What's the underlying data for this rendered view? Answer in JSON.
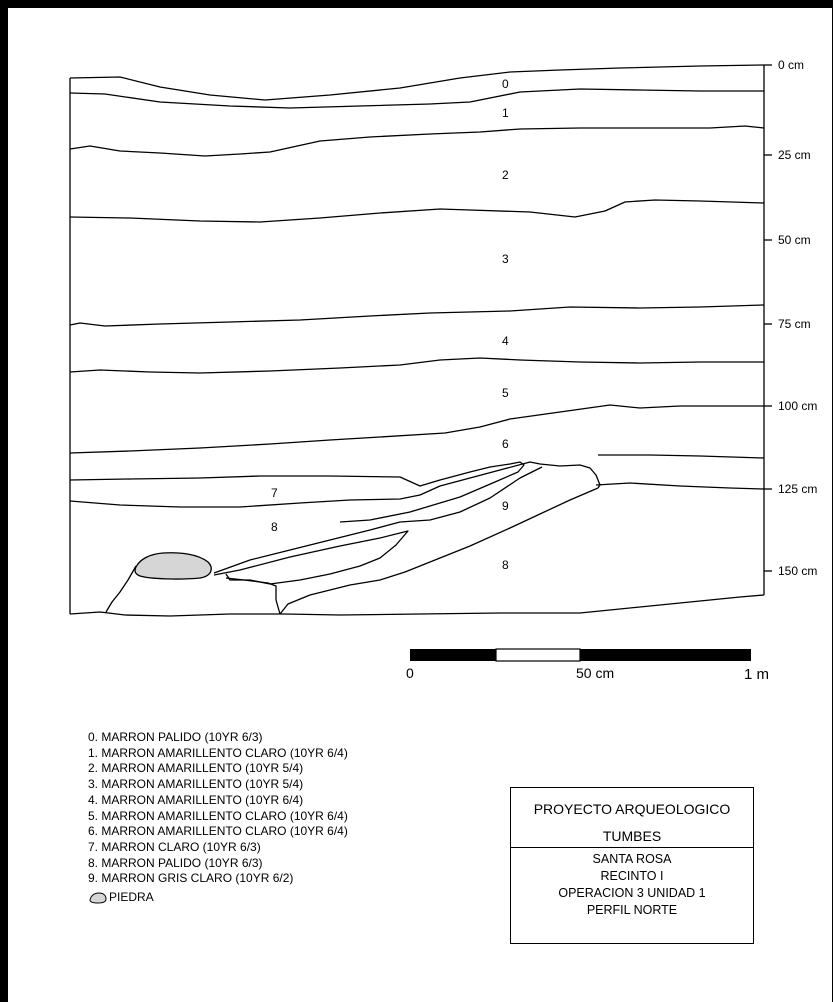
{
  "depth_scale": {
    "ticks": [
      "0 cm",
      "25 cm",
      "50 cm",
      "75 cm",
      "100 cm",
      "125 cm",
      "150 cm"
    ]
  },
  "layer_numbers": [
    "0",
    "1",
    "2",
    "3",
    "4",
    "5",
    "6",
    "7",
    "9",
    "8",
    "8"
  ],
  "bar_scale": {
    "labels": [
      "0",
      "50 cm",
      "1 m"
    ]
  },
  "legend": {
    "items": [
      "0. MARRON PALIDO (10YR 6/3)",
      "1. MARRON AMARILLENTO CLARO (10YR 6/4)",
      "2. MARRON AMARILLENTO (10YR 5/4)",
      "3. MARRON AMARILLENTO (10YR 5/4)",
      "4. MARRON AMARILLENTO (10YR 6/4)",
      "5. MARRON AMARILLENTO CLARO (10YR 6/4)",
      "6. MARRON AMARILLENTO CLARO (10YR 6/4)",
      "7. MARRON CLARO (10YR 6/3)",
      "8. MARRON PALIDO (10YR 6/3)",
      "9. MARRON GRIS CLARO (10YR 6/2)"
    ],
    "stone_label": "PIEDRA",
    "stone_color": "#d6d6d6"
  },
  "title_block": {
    "project": "PROYECTO ARQUEOLOGICO",
    "site": "TUMBES",
    "location": "SANTA ROSA",
    "enclosure": "RECINTO I",
    "operation": "OPERACION 3 UNIDAD 1",
    "profile": "PERFIL NORTE"
  }
}
